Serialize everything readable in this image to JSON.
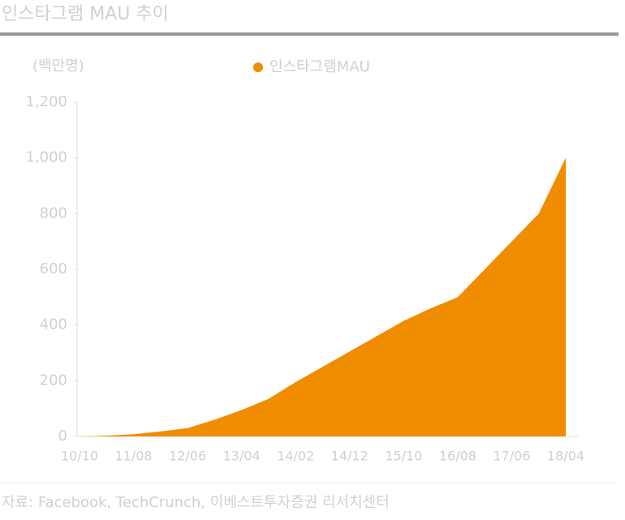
{
  "chart_data": {
    "type": "area",
    "title": "인스타그램 MAU 추이",
    "y_label": "(백만명)",
    "source": "자료: Facebook, TechCrunch, 이베스트투자증권 리서치센터",
    "categories": [
      "10/10",
      null,
      "11/08",
      null,
      "12/06",
      null,
      "13/04",
      null,
      "14/02",
      null,
      "14/12",
      null,
      "15/10",
      null,
      "16/08",
      null,
      "17/06",
      null,
      "18/04"
    ],
    "series": [
      {
        "name": "인스타그램MAU",
        "color": "#f08c00",
        "values": [
          0,
          3,
          8,
          18,
          30,
          60,
          95,
          135,
          195,
          250,
          305,
          360,
          415,
          460,
          500,
          600,
          700,
          800,
          1000
        ]
      }
    ],
    "ylim": [
      0,
      1200
    ],
    "yticks": [
      0,
      200,
      400,
      600,
      800,
      {
        "value": 1000,
        "label": "1,000"
      },
      {
        "value": 1200,
        "label": "1,200"
      }
    ]
  }
}
